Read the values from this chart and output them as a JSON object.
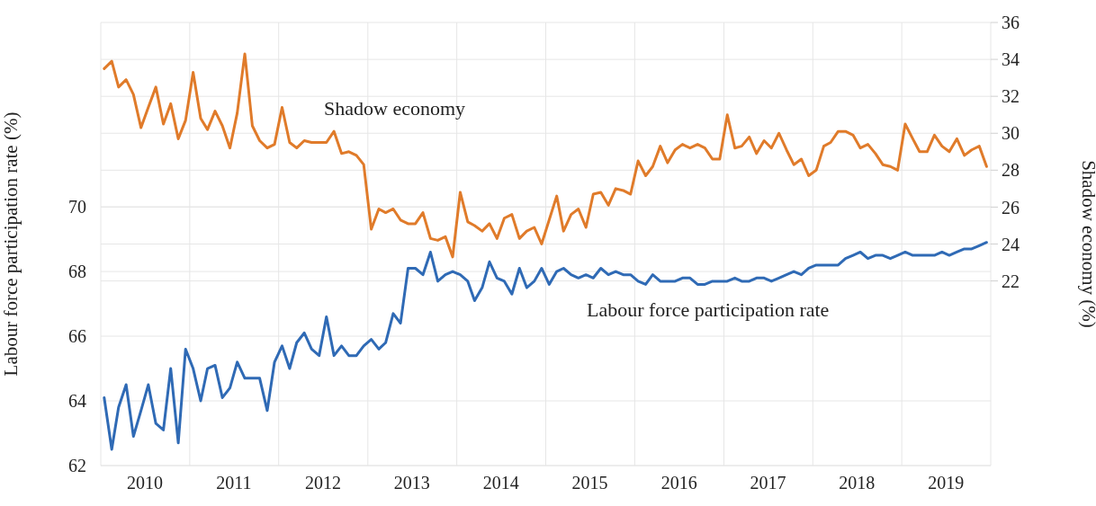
{
  "chart_data": {
    "type": "line",
    "xlabel": null,
    "ylabel": "Labour force participation rate (%)",
    "y2label": "Shadow economy (%)",
    "x": [
      "2010-01",
      "2010-02",
      "2010-03",
      "2010-04",
      "2010-05",
      "2010-06",
      "2010-07",
      "2010-08",
      "2010-09",
      "2010-10",
      "2010-11",
      "2010-12",
      "2011-01",
      "2011-02",
      "2011-03",
      "2011-04",
      "2011-05",
      "2011-06",
      "2011-07",
      "2011-08",
      "2011-09",
      "2011-10",
      "2011-11",
      "2011-12",
      "2012-01",
      "2012-02",
      "2012-03",
      "2012-04",
      "2012-05",
      "2012-06",
      "2012-07",
      "2012-08",
      "2012-09",
      "2012-10",
      "2012-11",
      "2012-12",
      "2013-01",
      "2013-02",
      "2013-03",
      "2013-04",
      "2013-05",
      "2013-06",
      "2013-07",
      "2013-08",
      "2013-09",
      "2013-10",
      "2013-11",
      "2013-12",
      "2014-01",
      "2014-02",
      "2014-03",
      "2014-04",
      "2014-05",
      "2014-06",
      "2014-07",
      "2014-08",
      "2014-09",
      "2014-10",
      "2014-11",
      "2014-12",
      "2015-01",
      "2015-02",
      "2015-03",
      "2015-04",
      "2015-05",
      "2015-06",
      "2015-07",
      "2015-08",
      "2015-09",
      "2015-10",
      "2015-11",
      "2015-12",
      "2016-01",
      "2016-02",
      "2016-03",
      "2016-04",
      "2016-05",
      "2016-06",
      "2016-07",
      "2016-08",
      "2016-09",
      "2016-10",
      "2016-11",
      "2016-12",
      "2017-01",
      "2017-02",
      "2017-03",
      "2017-04",
      "2017-05",
      "2017-06",
      "2017-07",
      "2017-08",
      "2017-09",
      "2017-10",
      "2017-11",
      "2017-12",
      "2018-01",
      "2018-02",
      "2018-03",
      "2018-04",
      "2018-05",
      "2018-06",
      "2018-07",
      "2018-08",
      "2018-09",
      "2018-10",
      "2018-11",
      "2018-12",
      "2019-01",
      "2019-02",
      "2019-03",
      "2019-04",
      "2019-05",
      "2019-06",
      "2019-07",
      "2019-08",
      "2019-09",
      "2019-10",
      "2019-11",
      "2019-12"
    ],
    "series": [
      {
        "name": "Labour force participation rate",
        "color": "#2f6ab5",
        "values": [
          64.1,
          62.5,
          63.8,
          64.5,
          62.9,
          63.7,
          64.5,
          63.3,
          63.1,
          65.0,
          62.7,
          65.6,
          65.0,
          64.0,
          65.0,
          65.1,
          64.1,
          64.4,
          65.2,
          64.7,
          64.7,
          64.7,
          63.7,
          65.2,
          65.7,
          65.0,
          65.8,
          66.1,
          65.6,
          65.4,
          66.6,
          65.4,
          65.7,
          65.4,
          65.4,
          65.7,
          65.9,
          65.6,
          65.8,
          66.7,
          66.4,
          68.1,
          68.1,
          67.9,
          68.6,
          67.7,
          67.9,
          68.0,
          67.9,
          67.7,
          67.1,
          67.5,
          68.3,
          67.8,
          67.7,
          67.3,
          68.1,
          67.5,
          67.7,
          68.1,
          67.6,
          68.0,
          68.1,
          67.9,
          67.8,
          67.9,
          67.8,
          68.1,
          67.9,
          68.0,
          67.9,
          67.9,
          67.7,
          67.6,
          67.9,
          67.7,
          67.7,
          67.7,
          67.8,
          67.8,
          67.6,
          67.6,
          67.7,
          67.7,
          67.7,
          67.8,
          67.7,
          67.7,
          67.8,
          67.8,
          67.7,
          67.8,
          67.9,
          68.0,
          67.9,
          68.1,
          68.2,
          68.2,
          68.2,
          68.2,
          68.4,
          68.5,
          68.6,
          68.4,
          68.5,
          68.5,
          68.4,
          68.5,
          68.6,
          68.5,
          68.5,
          68.5,
          68.5,
          68.6,
          68.5,
          68.6,
          68.7,
          68.7,
          68.8,
          68.9
        ]
      },
      {
        "name": "Shadow economy",
        "color": "#e07b2a",
        "axis": "y2",
        "values": [
          33.5,
          33.9,
          32.5,
          32.9,
          32.1,
          30.3,
          31.4,
          32.5,
          30.5,
          31.6,
          29.7,
          30.7,
          33.3,
          30.8,
          30.2,
          31.2,
          30.4,
          29.2,
          31.1,
          34.3,
          30.4,
          29.6,
          29.2,
          29.4,
          31.4,
          29.5,
          29.2,
          29.6,
          29.5,
          29.5,
          29.5,
          30.1,
          28.9,
          29.0,
          28.8,
          28.3,
          24.8,
          25.9,
          25.7,
          25.9,
          25.3,
          25.1,
          25.1,
          25.7,
          24.3,
          24.2,
          24.4,
          23.3,
          26.8,
          25.2,
          25.0,
          24.7,
          25.1,
          24.3,
          25.4,
          25.6,
          24.3,
          24.7,
          24.9,
          24.0,
          25.3,
          26.6,
          24.7,
          25.6,
          25.9,
          24.9,
          26.7,
          26.8,
          26.1,
          27.0,
          26.9,
          26.7,
          28.5,
          27.7,
          28.2,
          29.3,
          28.4,
          29.1,
          29.4,
          29.2,
          29.4,
          29.2,
          28.6,
          28.6,
          31.0,
          29.2,
          29.3,
          29.8,
          28.9,
          29.6,
          29.2,
          30.0,
          29.1,
          28.3,
          28.6,
          27.7,
          28.0,
          29.3,
          29.5,
          30.1,
          30.1,
          29.9,
          29.2,
          29.4,
          28.9,
          28.3,
          28.2,
          28.0,
          30.5,
          29.7,
          29.0,
          29.0,
          29.9,
          29.3,
          29.0,
          29.7,
          28.8,
          29.1,
          29.3,
          28.2
        ]
      }
    ],
    "xlim": [
      "2010-01",
      "2020-01"
    ],
    "xticks": [
      {
        "value": "2010-07",
        "label": "2010"
      },
      {
        "value": "2011-01",
        "label": null
      },
      {
        "value": "2011-07",
        "label": "2011"
      },
      {
        "value": "2012-01",
        "label": null
      },
      {
        "value": "2012-07",
        "label": "2012"
      },
      {
        "value": "2013-01",
        "label": null
      },
      {
        "value": "2013-07",
        "label": "2013"
      },
      {
        "value": "2014-01",
        "label": null
      },
      {
        "value": "2014-07",
        "label": "2014"
      },
      {
        "value": "2015-01",
        "label": null
      },
      {
        "value": "2015-07",
        "label": "2015"
      },
      {
        "value": "2016-01",
        "label": null
      },
      {
        "value": "2016-07",
        "label": "2016"
      },
      {
        "value": "2017-01",
        "label": null
      },
      {
        "value": "2017-07",
        "label": "2017"
      },
      {
        "value": "2018-01",
        "label": null
      },
      {
        "value": "2018-07",
        "label": "2018"
      },
      {
        "value": "2019-01",
        "label": null
      },
      {
        "value": "2019-07",
        "label": "2019"
      }
    ],
    "ylim": [
      62,
      75.7
    ],
    "yticks": [
      62,
      64,
      66,
      68,
      70
    ],
    "y2lim": [
      12,
      36
    ],
    "y2ticks": [
      22,
      24,
      26,
      28,
      30,
      32,
      34,
      36
    ],
    "grid": true
  }
}
